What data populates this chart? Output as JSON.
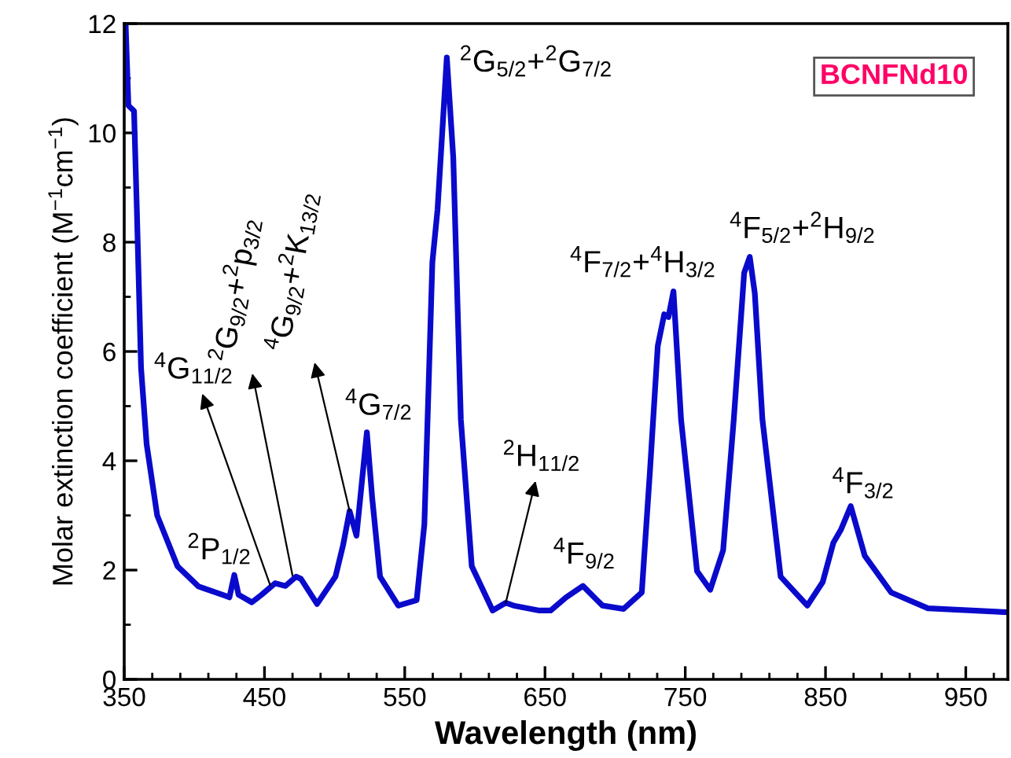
{
  "chart_data": {
    "type": "line",
    "xlabel": "Wavelength (nm)",
    "ylabel": "Molar extinction coefficient (M$^{−1}$cm$^{−1}$)",
    "xlim": [
      350,
      980
    ],
    "ylim": [
      0,
      12
    ],
    "xticks": [
      350,
      450,
      550,
      650,
      750,
      850,
      950
    ],
    "yticks": [
      0,
      2,
      4,
      6,
      8,
      10,
      12
    ],
    "grid": false,
    "legend": false,
    "marker": "none",
    "line_style": "solid",
    "series": [
      {
        "color": "#0a0acc",
        "x": [
          351,
          353,
          357,
          359,
          362,
          366,
          373.5,
          388,
          403,
          422,
          425,
          428.5,
          431.5,
          441,
          448,
          457.6,
          465,
          472.5,
          476,
          487.5,
          500.6,
          506,
          510.7,
          515.6,
          523,
          526.8,
          532.4,
          545.4,
          558.5,
          564,
          569.7,
          573.4,
          580,
          584.6,
          590,
          597.8,
          612.7,
          622,
          627.7,
          646,
          654,
          665,
          677,
          691,
          706,
          719,
          724.8,
          730.4,
          735,
          738,
          741.6,
          747,
          758.4,
          767.8,
          777,
          784.6,
          792,
          796,
          799.6,
          805,
          818,
          837,
          848,
          855.6,
          861,
          868,
          878,
          896.8,
          923,
          978
        ],
        "values": [
          12.0,
          10.5,
          10.4,
          8.6,
          5.7,
          4.3,
          3.0,
          2.07,
          1.7,
          1.53,
          1.5,
          1.91,
          1.55,
          1.41,
          1.55,
          1.76,
          1.71,
          1.88,
          1.84,
          1.38,
          1.88,
          2.45,
          3.08,
          2.63,
          4.52,
          3.32,
          1.88,
          1.35,
          1.45,
          2.84,
          7.63,
          8.6,
          11.38,
          9.55,
          4.76,
          2.07,
          1.26,
          1.4,
          1.35,
          1.26,
          1.26,
          1.5,
          1.71,
          1.35,
          1.29,
          1.59,
          3.8,
          6.1,
          6.68,
          6.63,
          7.1,
          4.76,
          1.98,
          1.64,
          2.36,
          4.76,
          7.44,
          7.73,
          7.06,
          4.76,
          1.88,
          1.35,
          1.78,
          2.5,
          2.74,
          3.17,
          2.26,
          1.59,
          1.3,
          1.23
        ]
      }
    ],
    "annotations": [
      {
        "text": "$^{4}$G$_{11/2}$",
        "x": 454,
        "y": 1.73
      },
      {
        "text": "$^{2}$G$_{9/2}$+$^{2}$p$_{3/2}$",
        "x": 470,
        "y": 1.9
      },
      {
        "text": "$^{4}$G$_{9/2}$+$^{2}$K$_{13/2}$",
        "x": 510.7,
        "y": 3.08
      },
      {
        "text": "$^{2}$H$_{11/2}$",
        "x": 622,
        "y": 1.4
      },
      {
        "text": "$^{2}$P$_{1/2}$",
        "x": 428.5,
        "y": 1.91
      },
      {
        "text": "$^{4}$G$_{7/2}$",
        "x": 523,
        "y": 4.52
      },
      {
        "text": "$^{2}$G$_{5/2}$+$^{2}$G$_{7/2}$",
        "x": 580,
        "y": 11.38
      },
      {
        "text": "$^{4}$F$_{9/2}$",
        "x": 677,
        "y": 1.71
      },
      {
        "text": "$^{4}$F$_{7/2}$+$^{4}$H$_{3/2}$",
        "x": 741.6,
        "y": 7.1
      },
      {
        "text": "$^{4}$F$_{5/2}$+$^{2}$H$_{9/2}$",
        "x": 796,
        "y": 7.73
      },
      {
        "text": "$^{4}$F$_{3/2}$",
        "x": 868,
        "y": 3.17
      },
      "BCNFNd10"
    ]
  }
}
